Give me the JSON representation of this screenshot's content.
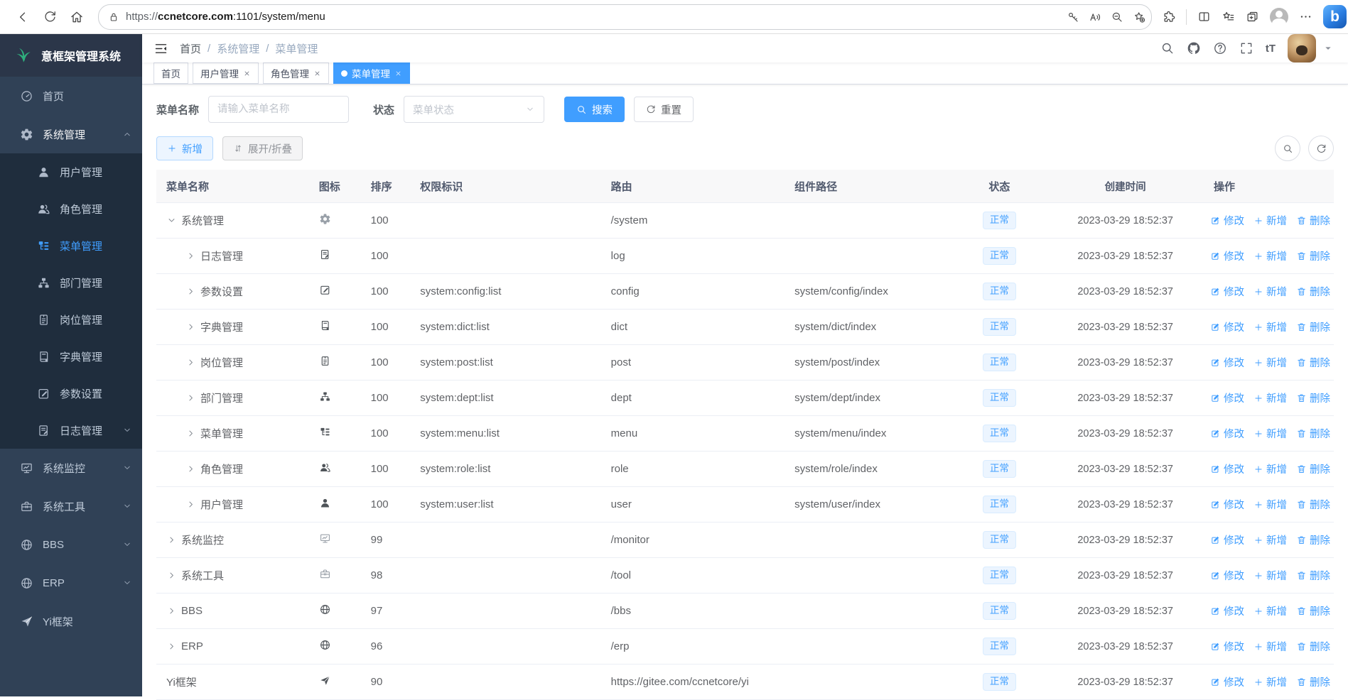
{
  "browser": {
    "url_scheme": "https://",
    "url_domain": "ccnetcore.com",
    "url_rest": ":1101/system/menu",
    "toolbar_icons": [
      "back",
      "refresh",
      "home"
    ],
    "pill_icons": [
      "key",
      "read-aloud",
      "zoom-out",
      "favorite-star"
    ],
    "right_icons": [
      "extensions",
      "split-screen",
      "favorites",
      "collections",
      "profile",
      "more"
    ],
    "bing_label": "b"
  },
  "sidebar": {
    "logo_text": "意框架管理系统",
    "items": [
      {
        "key": "home",
        "label": "首页",
        "icon": "dashboard-icon"
      },
      {
        "key": "system",
        "label": "系统管理",
        "icon": "gear-icon",
        "expanded": true,
        "children": [
          {
            "key": "user",
            "label": "用户管理",
            "icon": "user-icon"
          },
          {
            "key": "role",
            "label": "角色管理",
            "icon": "users-icon"
          },
          {
            "key": "menu",
            "label": "菜单管理",
            "icon": "menu-tree-icon",
            "active": true
          },
          {
            "key": "dept",
            "label": "部门管理",
            "icon": "org-tree-icon"
          },
          {
            "key": "post",
            "label": "岗位管理",
            "icon": "badge-icon"
          },
          {
            "key": "dict",
            "label": "字典管理",
            "icon": "book-icon"
          },
          {
            "key": "config",
            "label": "参数设置",
            "icon": "edit-square-icon"
          },
          {
            "key": "log",
            "label": "日志管理",
            "icon": "log-doc-icon",
            "hasArrow": true
          }
        ]
      },
      {
        "key": "monitor",
        "label": "系统监控",
        "icon": "monitor-icon",
        "hasArrow": true
      },
      {
        "key": "tool",
        "label": "系统工具",
        "icon": "toolbox-icon",
        "hasArrow": true
      },
      {
        "key": "bbs",
        "label": "BBS",
        "icon": "globe-icon",
        "hasArrow": true
      },
      {
        "key": "erp",
        "label": "ERP",
        "icon": "globe-icon",
        "hasArrow": true
      },
      {
        "key": "yi",
        "label": "Yi框架",
        "icon": "plane-icon"
      }
    ]
  },
  "navbar": {
    "breadcrumb": [
      "首页",
      "系统管理",
      "菜单管理"
    ],
    "separator": "/",
    "icons": [
      "search",
      "github",
      "question",
      "fullscreen",
      "font-size"
    ]
  },
  "tabs": [
    {
      "key": "home",
      "label": "首页",
      "closable": false,
      "active": false
    },
    {
      "key": "user",
      "label": "用户管理",
      "closable": true,
      "active": false
    },
    {
      "key": "role",
      "label": "角色管理",
      "closable": true,
      "active": false
    },
    {
      "key": "menu",
      "label": "菜单管理",
      "closable": true,
      "active": true
    }
  ],
  "filters": {
    "name_label": "菜单名称",
    "name_placeholder": "请输入菜单名称",
    "status_label": "状态",
    "status_placeholder": "菜单状态",
    "search_label": "搜索",
    "reset_label": "重置"
  },
  "toolbar": {
    "add_label": "新增",
    "toggle_label": "展开/折叠",
    "right_icons": [
      "search",
      "refresh"
    ]
  },
  "table": {
    "columns": [
      "菜单名称",
      "图标",
      "排序",
      "权限标识",
      "路由",
      "组件路径",
      "状态",
      "创建时间",
      "操作"
    ],
    "actions": {
      "edit": "修改",
      "add": "新增",
      "delete": "删除"
    },
    "rows": [
      {
        "name": "系统管理",
        "level": 0,
        "arrow": "down",
        "icon": "gear-icon",
        "order": "100",
        "perm": "",
        "route": "/system",
        "component": "",
        "status": "正常",
        "created": "2023-03-29 18:52:37"
      },
      {
        "name": "日志管理",
        "level": 1,
        "arrow": "right",
        "icon": "log-doc-icon",
        "order": "100",
        "perm": "",
        "route": "log",
        "component": "",
        "status": "正常",
        "created": "2023-03-29 18:52:37"
      },
      {
        "name": "参数设置",
        "level": 1,
        "arrow": "right",
        "icon": "edit-square-icon",
        "order": "100",
        "perm": "system:config:list",
        "route": "config",
        "component": "system/config/index",
        "status": "正常",
        "created": "2023-03-29 18:52:37"
      },
      {
        "name": "字典管理",
        "level": 1,
        "arrow": "right",
        "icon": "book-icon",
        "order": "100",
        "perm": "system:dict:list",
        "route": "dict",
        "component": "system/dict/index",
        "status": "正常",
        "created": "2023-03-29 18:52:37"
      },
      {
        "name": "岗位管理",
        "level": 1,
        "arrow": "right",
        "icon": "badge-icon",
        "order": "100",
        "perm": "system:post:list",
        "route": "post",
        "component": "system/post/index",
        "status": "正常",
        "created": "2023-03-29 18:52:37"
      },
      {
        "name": "部门管理",
        "level": 1,
        "arrow": "right",
        "icon": "org-tree-icon",
        "order": "100",
        "perm": "system:dept:list",
        "route": "dept",
        "component": "system/dept/index",
        "status": "正常",
        "created": "2023-03-29 18:52:37"
      },
      {
        "name": "菜单管理",
        "level": 1,
        "arrow": "right",
        "icon": "menu-tree-icon",
        "order": "100",
        "perm": "system:menu:list",
        "route": "menu",
        "component": "system/menu/index",
        "status": "正常",
        "created": "2023-03-29 18:52:37"
      },
      {
        "name": "角色管理",
        "level": 1,
        "arrow": "right",
        "icon": "users-icon",
        "order": "100",
        "perm": "system:role:list",
        "route": "role",
        "component": "system/role/index",
        "status": "正常",
        "created": "2023-03-29 18:52:37"
      },
      {
        "name": "用户管理",
        "level": 1,
        "arrow": "right",
        "icon": "user-icon",
        "order": "100",
        "perm": "system:user:list",
        "route": "user",
        "component": "system/user/index",
        "status": "正常",
        "created": "2023-03-29 18:52:37"
      },
      {
        "name": "系统监控",
        "level": 0,
        "arrow": "right",
        "icon": "monitor-icon",
        "order": "99",
        "perm": "",
        "route": "/monitor",
        "component": "",
        "status": "正常",
        "created": "2023-03-29 18:52:37"
      },
      {
        "name": "系统工具",
        "level": 0,
        "arrow": "right",
        "icon": "toolbox-icon",
        "order": "98",
        "perm": "",
        "route": "/tool",
        "component": "",
        "status": "正常",
        "created": "2023-03-29 18:52:37"
      },
      {
        "name": "BBS",
        "level": 0,
        "arrow": "right",
        "icon": "globe-icon",
        "order": "97",
        "perm": "",
        "route": "/bbs",
        "component": "",
        "status": "正常",
        "created": "2023-03-29 18:52:37"
      },
      {
        "name": "ERP",
        "level": 0,
        "arrow": "right",
        "icon": "globe-icon",
        "order": "96",
        "perm": "",
        "route": "/erp",
        "component": "",
        "status": "正常",
        "created": "2023-03-29 18:52:37"
      },
      {
        "name": "Yi框架",
        "level": 0,
        "arrow": "none",
        "icon": "plane-icon",
        "order": "90",
        "perm": "",
        "route": "https://gitee.com/ccnetcore/yi",
        "component": "",
        "status": "正常",
        "created": "2023-03-29 18:52:37"
      }
    ]
  },
  "colors": {
    "accent": "#409eff",
    "sidebar_bg": "#304156",
    "sidebar_submenu_bg": "#1f2d3d",
    "sidebar_text": "#bfcbd9",
    "logo_green": "#2eaf7d",
    "tag_bg": "#ecf5ff",
    "tag_border": "#d9ecff",
    "table_header_bg": "#f8f8f9"
  }
}
